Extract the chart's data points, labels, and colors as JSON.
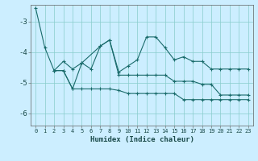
{
  "xlabel": "Humidex (Indice chaleur)",
  "background_color": "#cceeff",
  "grid_color": "#88cccc",
  "line_color": "#1a6b6b",
  "xlim": [
    -0.5,
    23.5
  ],
  "ylim": [
    -6.4,
    -2.45
  ],
  "yticks": [
    -6,
    -5,
    -4,
    -3
  ],
  "xtick_labels": [
    "0",
    "1",
    "2",
    "3",
    "4",
    "5",
    "6",
    "7",
    "8",
    "9",
    "10",
    "11",
    "12",
    "13",
    "14",
    "15",
    "16",
    "17",
    "18",
    "19",
    "20",
    "21",
    "22",
    "23"
  ],
  "line1_x": [
    0,
    1,
    2,
    3,
    4,
    5,
    7,
    8,
    9,
    10,
    11,
    12,
    13,
    14,
    15,
    16,
    17,
    18,
    19,
    20,
    21,
    22,
    23
  ],
  "line1_y": [
    -2.55,
    -3.85,
    -4.6,
    -4.3,
    -4.55,
    -4.35,
    -3.8,
    -3.6,
    -4.65,
    -4.45,
    -4.25,
    -3.5,
    -3.5,
    -3.85,
    -4.25,
    -4.15,
    -4.3,
    -4.3,
    -4.55,
    -4.55,
    -4.55,
    -4.55,
    -4.55
  ],
  "line2_x": [
    2,
    3,
    4,
    5,
    6,
    7,
    8,
    9,
    10,
    11,
    12,
    13,
    14,
    15,
    16,
    17,
    18,
    19,
    20,
    21,
    22,
    23
  ],
  "line2_y": [
    -4.6,
    -4.6,
    -5.2,
    -4.35,
    -4.55,
    -3.8,
    -3.6,
    -4.75,
    -4.75,
    -4.75,
    -4.75,
    -4.75,
    -4.75,
    -4.95,
    -4.95,
    -4.95,
    -5.05,
    -5.05,
    -5.4,
    -5.4,
    -5.4,
    -5.4
  ],
  "line3_x": [
    2,
    3,
    4,
    5,
    6,
    7,
    8,
    9,
    10,
    11,
    12,
    13,
    14,
    15,
    16,
    17,
    18,
    19,
    20,
    21,
    22,
    23
  ],
  "line3_y": [
    -4.6,
    -4.6,
    -5.2,
    -5.2,
    -5.2,
    -5.2,
    -5.2,
    -5.25,
    -5.35,
    -5.35,
    -5.35,
    -5.35,
    -5.35,
    -5.35,
    -5.55,
    -5.55,
    -5.55,
    -5.55,
    -5.55,
    -5.55,
    -5.55,
    -5.55
  ]
}
